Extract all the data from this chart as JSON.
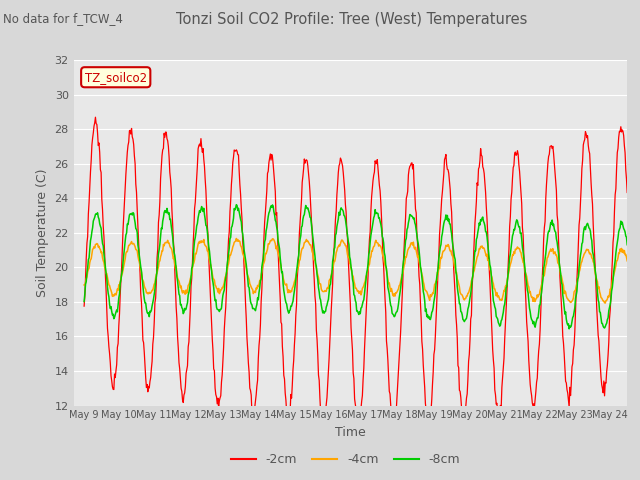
{
  "title": "Tonzi Soil CO2 Profile: Tree (West) Temperatures",
  "subtitle": "No data for f_TCW_4",
  "ylabel": "Soil Temperature (C)",
  "xlabel": "Time",
  "ylim": [
    12,
    32
  ],
  "x_tick_labels": [
    "May 9",
    "May 10",
    "May 11",
    "May 12",
    "May 13",
    "May 14",
    "May 15",
    "May 16",
    "May 17",
    "May 18",
    "May 19",
    "May 20",
    "May 21",
    "May 22",
    "May 23",
    "May 24"
  ],
  "x_tick_positions": [
    0,
    1,
    2,
    3,
    4,
    5,
    6,
    7,
    8,
    9,
    10,
    11,
    12,
    13,
    14,
    15
  ],
  "yticks": [
    12,
    14,
    16,
    18,
    20,
    22,
    24,
    26,
    28,
    30,
    32
  ],
  "legend_label": "TZ_soilco2",
  "series_labels": [
    "-2cm",
    "-4cm",
    "-8cm"
  ],
  "series_colors": [
    "#ff0000",
    "#ffa500",
    "#00cc00"
  ],
  "bg_color": "#d8d8d8",
  "plot_bg_color": "#e8e8e8",
  "title_color": "#555555",
  "subtitle_color": "#555555",
  "grid_color": "#ffffff"
}
